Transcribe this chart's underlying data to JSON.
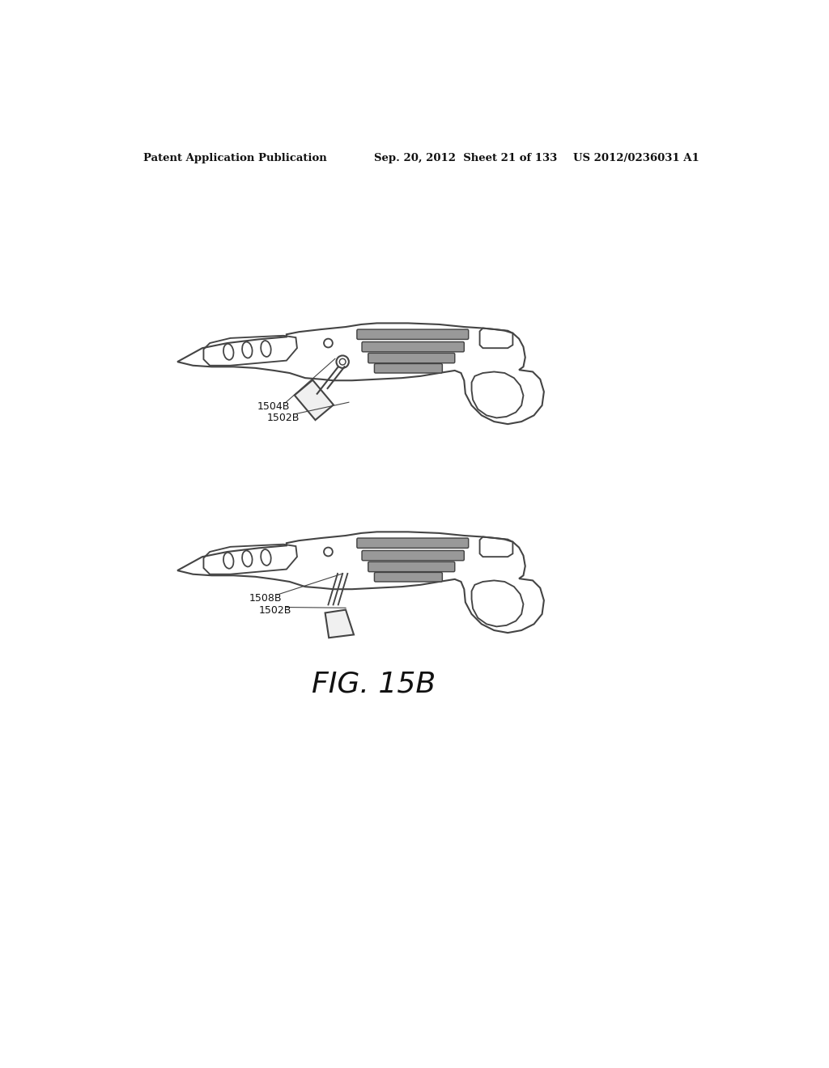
{
  "bg_color": "#ffffff",
  "line_color": "#444444",
  "lw": 1.5,
  "header_left": "Patent Application Publication",
  "header_center": "Sep. 20, 2012  Sheet 21 of 133",
  "header_right": "US 2012/0236031 A1",
  "figure_label": "FIG. 15B",
  "top_label1": "1504B",
  "top_label2": "1502B",
  "bot_label1": "1508B",
  "bot_label2": "1502B"
}
